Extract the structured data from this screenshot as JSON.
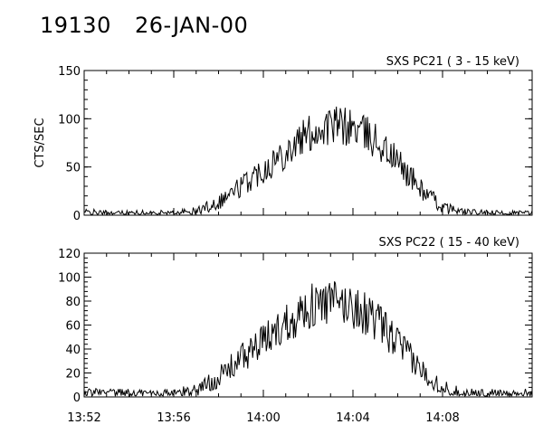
{
  "header": {
    "id": "19130",
    "date": "26-JAN-00"
  },
  "chart_data": [
    {
      "type": "line",
      "label": "SXS PC21  (  3 - 15 keV)",
      "ylabel": "CTS/SEC",
      "ylim": [
        0,
        150
      ],
      "yticks": [
        0,
        50,
        100,
        150
      ],
      "xlim": [
        "13:52",
        "14:12"
      ],
      "xticks": [
        "13:52",
        "13:56",
        "14:00",
        "14:04",
        "14:08"
      ],
      "x": [
        "13:52",
        "13:53",
        "13:54",
        "13:55",
        "13:56",
        "13:57",
        "13:58",
        "13:59",
        "14:00",
        "14:01",
        "14:02",
        "14:03",
        "14:04",
        "14:05",
        "14:06",
        "14:07",
        "14:08",
        "14:09",
        "14:10",
        "14:11",
        "14:12"
      ],
      "values": [
        3,
        2,
        2,
        2,
        2,
        4,
        14,
        30,
        48,
        66,
        84,
        93,
        91,
        78,
        55,
        28,
        8,
        3,
        2,
        2,
        2
      ]
    },
    {
      "type": "line",
      "label": "SXS PC22  ( 15 - 40 keV)",
      "ylabel": "",
      "ylim": [
        0,
        120
      ],
      "yticks": [
        0,
        20,
        40,
        60,
        80,
        100,
        120
      ],
      "xlim": [
        "13:52",
        "14:12"
      ],
      "xticks": [
        "13:52",
        "13:56",
        "14:00",
        "14:04",
        "14:08"
      ],
      "x": [
        "13:52",
        "13:53",
        "13:54",
        "13:55",
        "13:56",
        "13:57",
        "13:58",
        "13:59",
        "14:00",
        "14:01",
        "14:02",
        "14:03",
        "14:04",
        "14:05",
        "14:06",
        "14:07",
        "14:08",
        "14:09",
        "14:10",
        "14:11",
        "14:12"
      ],
      "values": [
        4,
        3,
        3,
        3,
        3,
        6,
        16,
        32,
        46,
        62,
        75,
        79,
        76,
        64,
        45,
        23,
        8,
        3,
        3,
        3,
        3
      ]
    }
  ]
}
